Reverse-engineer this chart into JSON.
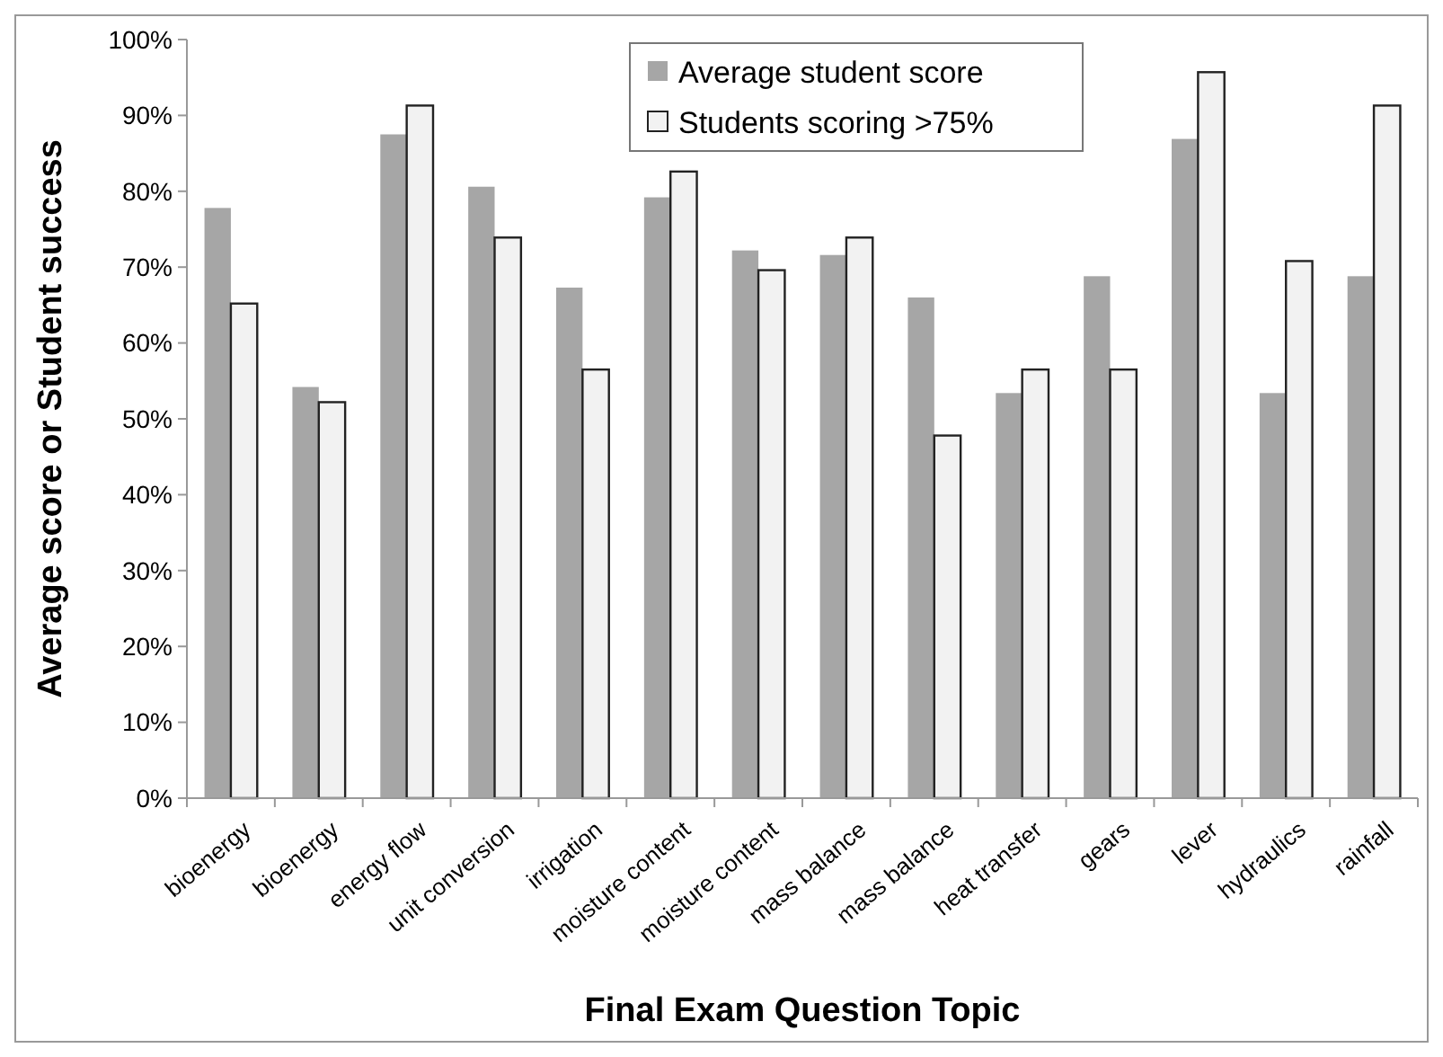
{
  "chart_data": {
    "type": "bar",
    "xlabel": "Final Exam Question Topic",
    "ylabel": "Average score or Student success",
    "categories": [
      "bioenergy",
      "bioenergy",
      "energy flow",
      "unit conversion",
      "irrigation",
      "moisture content",
      "moisture content",
      "mass balance",
      "mass balance",
      "heat transfer",
      "gears",
      "lever",
      "hydraulics",
      "rainfall"
    ],
    "series": [
      {
        "name": "Average student score",
        "color": "#a6a6a6",
        "values": [
          77.8,
          54.2,
          87.5,
          80.6,
          67.3,
          79.2,
          72.2,
          71.6,
          66.0,
          53.4,
          68.8,
          86.9,
          53.4,
          68.8
        ]
      },
      {
        "name": "Students scoring >75%",
        "color": "#f2f2f2",
        "values": [
          65.2,
          52.2,
          91.3,
          73.9,
          56.5,
          82.6,
          69.6,
          73.9,
          47.8,
          56.5,
          56.5,
          95.7,
          70.8,
          91.3
        ]
      }
    ],
    "ylim": [
      0,
      100
    ],
    "yticks": [
      {
        "value": 0,
        "label": "0%"
      },
      {
        "value": 10,
        "label": "10%"
      },
      {
        "value": 20,
        "label": "20%"
      },
      {
        "value": 30,
        "label": "30%"
      },
      {
        "value": 40,
        "label": "40%"
      },
      {
        "value": 50,
        "label": "50%"
      },
      {
        "value": 60,
        "label": "60%"
      },
      {
        "value": 70,
        "label": "70%"
      },
      {
        "value": 80,
        "label": "80%"
      },
      {
        "value": 90,
        "label": "90%"
      },
      {
        "value": 100,
        "label": "100%"
      }
    ],
    "grid": false,
    "legend": "top"
  }
}
